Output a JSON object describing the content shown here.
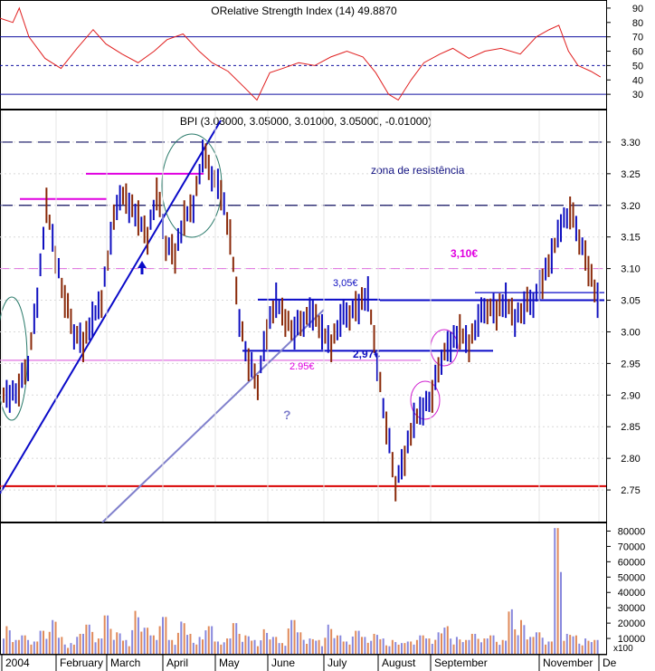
{
  "colors": {
    "panel_border": "#000000",
    "grid": "#bdbdbd",
    "rsi_line": "#e02020",
    "rsi_level": "#1010a0",
    "up_bar": "#1010c0",
    "down_bar": "#8a2a0a",
    "resistance": "#101060",
    "magenta": "#e000e0",
    "support_red": "#d80000",
    "trend_dark": "#0a0ac8",
    "trend_light": "#8080cc",
    "ellipse_green": "#2a7a6a",
    "ellipse_magenta": "#d020d0",
    "vol_up": "#8888dd",
    "vol_down": "#e08a5a"
  },
  "rsi_panel": {
    "title": "ORelative Strength Index (14) 49.8870",
    "y_ticks": [
      "90",
      "80",
      "70",
      "60",
      "50",
      "40",
      "30"
    ],
    "levels": [
      70,
      50,
      30
    ]
  },
  "price_panel": {
    "title": "BPI (3.03000, 3.05000, 3.01000, 3.05000, -0.01000)",
    "y_ticks": [
      "3.30",
      "3.25",
      "3.20",
      "3.15",
      "3.10",
      "3.05",
      "3.00",
      "2.95",
      "2.90",
      "2.85",
      "2.80",
      "2.75"
    ],
    "annotations": {
      "resistance_zone": "zona de resistência",
      "level_310": "3,10€",
      "level_305": "3,05€",
      "level_297": "2,97€",
      "level_295": "2.95€",
      "question": "?"
    }
  },
  "volume_panel": {
    "y_ticks": [
      "80000",
      "70000",
      "60000",
      "50000",
      "40000",
      "30000",
      "20000",
      "10000"
    ],
    "unit": "x100"
  },
  "x_axis": {
    "labels": [
      "2004",
      "February",
      "March",
      "April",
      "May",
      "June",
      "July",
      "August",
      "September",
      "November",
      "De"
    ]
  },
  "chart_data": [
    {
      "type": "line",
      "title": "ORelative Strength Index (14) 49.8870",
      "ylim": [
        20,
        95
      ],
      "reference_lines": [
        70,
        50,
        30
      ],
      "x_months": [
        "2004",
        "February",
        "March",
        "April",
        "May",
        "June",
        "July",
        "August",
        "September",
        "November"
      ],
      "rsi_path": [
        [
          0,
          83
        ],
        [
          4,
          80
        ],
        [
          6,
          90
        ],
        [
          9,
          70
        ],
        [
          14,
          55
        ],
        [
          19,
          48
        ],
        [
          24,
          62
        ],
        [
          29,
          75
        ],
        [
          33,
          65
        ],
        [
          38,
          58
        ],
        [
          43,
          52
        ],
        [
          48,
          60
        ],
        [
          52,
          68
        ],
        [
          57,
          72
        ],
        [
          62,
          60
        ],
        [
          66,
          52
        ],
        [
          71,
          46
        ],
        [
          76,
          35
        ],
        [
          80,
          26
        ],
        [
          84,
          45
        ],
        [
          88,
          48
        ],
        [
          93,
          52
        ],
        [
          98,
          50
        ],
        [
          103,
          56
        ],
        [
          108,
          60
        ],
        [
          113,
          56
        ],
        [
          117,
          45
        ],
        [
          121,
          30
        ],
        [
          124,
          26
        ],
        [
          128,
          40
        ],
        [
          132,
          52
        ],
        [
          137,
          58
        ],
        [
          141,
          62
        ],
        [
          146,
          55
        ],
        [
          151,
          60
        ],
        [
          156,
          62
        ],
        [
          162,
          58
        ],
        [
          167,
          70
        ],
        [
          171,
          75
        ],
        [
          174,
          78
        ],
        [
          177,
          60
        ],
        [
          180,
          50
        ],
        [
          184,
          46
        ],
        [
          187,
          42
        ]
      ]
    },
    {
      "type": "bar",
      "title": "BPI (3.03000, 3.05000, 3.01000, 3.05000, -0.01000)",
      "ylim": [
        2.7,
        3.35
      ],
      "series": [
        {
          "values": [
            2.9,
            2.91,
            2.95,
            3.05,
            3.2,
            3.12,
            3.05,
            3.0,
            2.98,
            3.02,
            3.05,
            3.15,
            3.22,
            3.2,
            3.18,
            3.15,
            3.22,
            3.14,
            3.12,
            3.18,
            3.2,
            3.28,
            3.25,
            3.22,
            3.15,
            3.02,
            2.95,
            2.92,
            3.0,
            3.05,
            3.02,
            3.0,
            3.02,
            3.03,
            3.0,
            2.98,
            3.02,
            3.03,
            3.04,
            3.06,
            2.95,
            2.85,
            2.76,
            2.8,
            2.86,
            2.88,
            2.9,
            2.96,
            2.98,
            3.0,
            2.98,
            3.02,
            3.04,
            3.03,
            3.05,
            3.02,
            3.04,
            3.05,
            3.08,
            3.12,
            3.17,
            3.19,
            3.15,
            3.1,
            3.05
          ]
        }
      ],
      "horizontal_levels": [
        3.3,
        3.2,
        3.25,
        3.21,
        3.1,
        3.05,
        2.97,
        2.955,
        2.755
      ],
      "annotations": [
        "zona de resistência",
        "3,10€",
        "3,05€",
        "2,97€",
        "2.95€",
        "?"
      ]
    },
    {
      "type": "bar",
      "ylim": [
        0,
        85000
      ],
      "unit": "x100",
      "values": [
        18000,
        9000,
        12000,
        8000,
        15000,
        22000,
        11000,
        7000,
        13000,
        19000,
        10000,
        25000,
        14000,
        9000,
        28000,
        17000,
        12000,
        24000,
        9000,
        21000,
        13000,
        11000,
        18000,
        8000,
        10000,
        20000,
        12000,
        9000,
        16000,
        11000,
        7000,
        22000,
        14000,
        10000,
        9000,
        19000,
        12000,
        8000,
        15000,
        11000,
        13000,
        10000,
        9000,
        7000,
        8000,
        12000,
        10000,
        14000,
        18000,
        11000,
        9000,
        13000,
        10000,
        12000,
        9000,
        29000,
        22000,
        11000,
        14000,
        8000,
        82000,
        13000,
        12000,
        10000,
        9000
      ]
    }
  ]
}
